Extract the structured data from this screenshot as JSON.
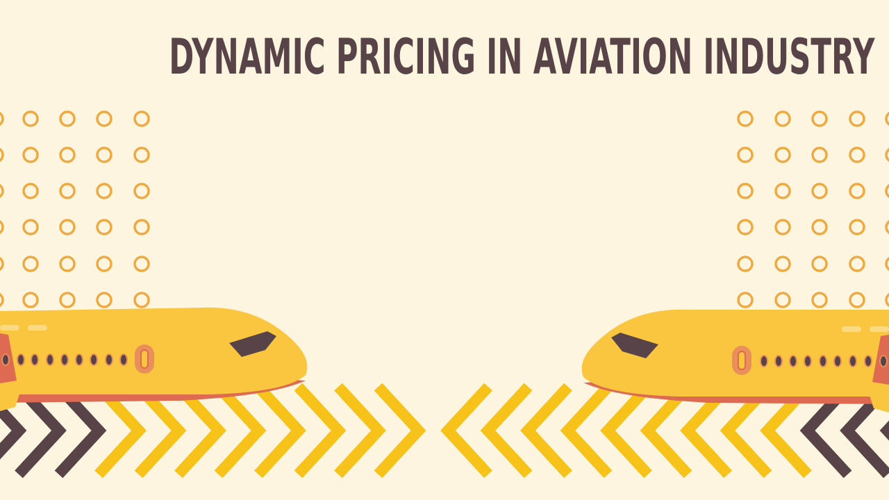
{
  "slide": {
    "title": "DYNAMIC PRICING IN AVIATION INDUSTRY"
  },
  "colors": {
    "background": "#FDF5E0",
    "title": "#574348",
    "ring": "#EFA940",
    "chevron_yellow": "#F7C21A",
    "chevron_dark": "#574348",
    "plane_body": "#FBC63F",
    "plane_belly": "#DE6A52",
    "cockpit_window": "#574348",
    "door": "#E98F5A"
  },
  "icons": {
    "left_plane": "airplane-nose-right-icon",
    "right_plane": "airplane-nose-left-icon",
    "dots": "ring-dot-icon",
    "chevrons": "chevron-arrow-icon"
  }
}
